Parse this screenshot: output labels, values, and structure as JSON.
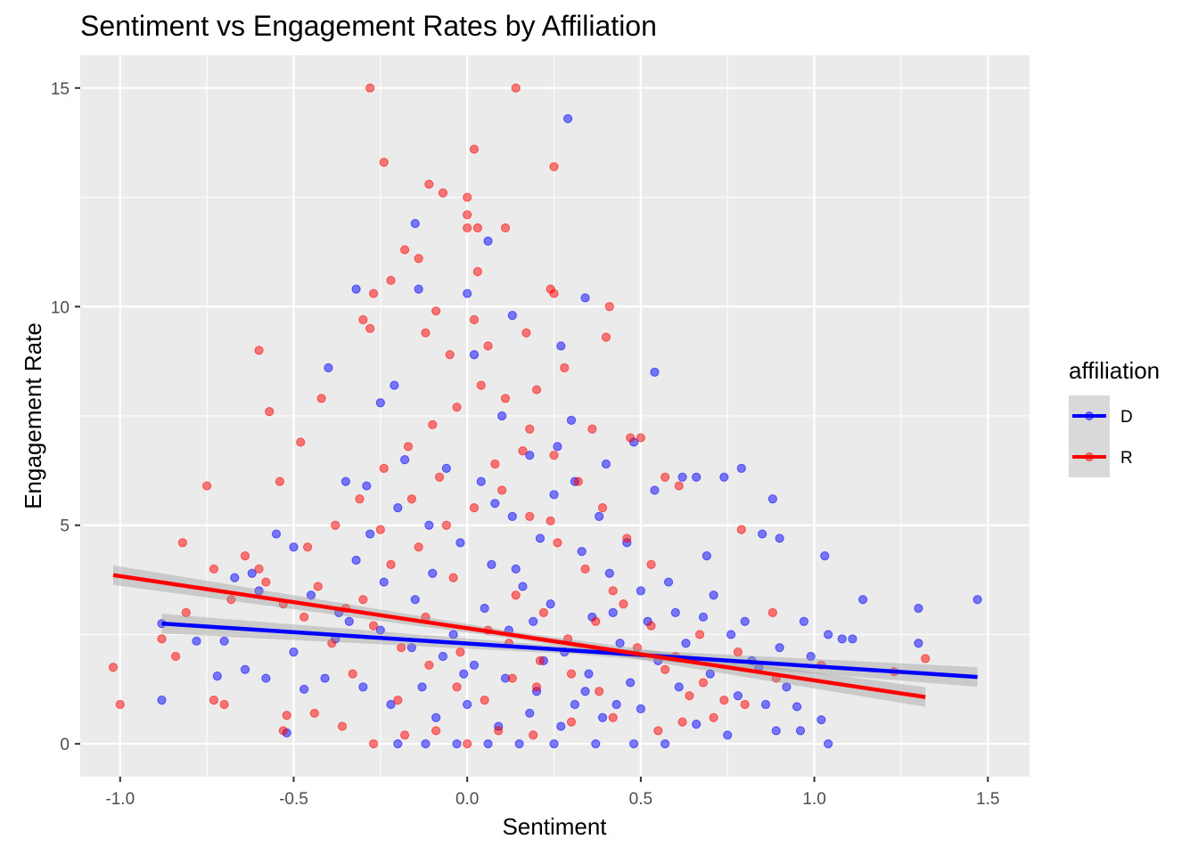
{
  "chart_data": {
    "type": "scatter",
    "title": "Sentiment vs Engagement Rates by Affiliation",
    "xlabel": "Sentiment",
    "ylabel": "Engagement Rate",
    "xlim": [
      -1.115,
      1.62
    ],
    "ylim": [
      -0.75,
      15.75
    ],
    "x_ticks": [
      -1.0,
      -0.5,
      0.0,
      0.5,
      1.0,
      1.5
    ],
    "x_tick_labels": [
      "-1.0",
      "-0.5",
      "0.0",
      "0.5",
      "1.0",
      "1.5"
    ],
    "y_ticks": [
      0,
      5,
      10,
      15
    ],
    "y_tick_labels": [
      "0",
      "5",
      "10",
      "15"
    ],
    "grid": true,
    "legend": {
      "title": "affiliation",
      "position": "right"
    },
    "series": [
      {
        "name": "D",
        "color": "#0000FF",
        "points": [
          [
            0.29,
            14.3
          ],
          [
            0.06,
            11.5
          ],
          [
            -0.15,
            11.9
          ],
          [
            -0.32,
            10.4
          ],
          [
            -0.14,
            10.4
          ],
          [
            0.34,
            10.2
          ],
          [
            0.0,
            10.3
          ],
          [
            0.13,
            9.8
          ],
          [
            0.27,
            9.1
          ],
          [
            -0.4,
            8.6
          ],
          [
            0.54,
            8.5
          ],
          [
            0.02,
            8.9
          ],
          [
            -0.21,
            8.2
          ],
          [
            0.79,
            6.3
          ],
          [
            0.88,
            5.6
          ],
          [
            -0.25,
            7.8
          ],
          [
            0.1,
            7.5
          ],
          [
            0.48,
            6.9
          ],
          [
            0.3,
            7.4
          ],
          [
            0.62,
            6.1
          ],
          [
            0.66,
            6.1
          ],
          [
            0.74,
            6.1
          ],
          [
            -0.35,
            6.0
          ],
          [
            0.54,
            5.8
          ],
          [
            -0.55,
            4.8
          ],
          [
            -0.5,
            4.5
          ],
          [
            -0.62,
            3.9
          ],
          [
            -0.67,
            3.8
          ],
          [
            -0.6,
            3.5
          ],
          [
            0.69,
            4.3
          ],
          [
            0.85,
            4.8
          ],
          [
            0.9,
            4.7
          ],
          [
            1.03,
            4.3
          ],
          [
            1.47,
            3.3
          ],
          [
            1.3,
            3.1
          ],
          [
            1.14,
            3.3
          ],
          [
            0.97,
            2.8
          ],
          [
            1.04,
            2.5
          ],
          [
            1.08,
            2.4
          ],
          [
            1.11,
            2.4
          ],
          [
            1.3,
            2.3
          ],
          [
            -0.88,
            2.75
          ],
          [
            -0.78,
            2.35
          ],
          [
            -0.7,
            2.35
          ],
          [
            -0.72,
            1.55
          ],
          [
            -0.64,
            1.7
          ],
          [
            -0.58,
            1.5
          ],
          [
            -0.5,
            2.1
          ],
          [
            -0.88,
            1.0
          ],
          [
            -0.52,
            0.25
          ],
          [
            -0.47,
            1.25
          ],
          [
            0.82,
            1.9
          ],
          [
            0.84,
            1.75
          ],
          [
            0.92,
            1.3
          ],
          [
            0.95,
            0.85
          ],
          [
            1.02,
            0.55
          ],
          [
            1.04,
            0.0
          ],
          [
            0.96,
            0.3
          ],
          [
            0.89,
            0.3
          ],
          [
            0.75,
            0.2
          ],
          [
            0.66,
            0.45
          ],
          [
            0.57,
            0.0
          ],
          [
            0.48,
            0.0
          ],
          [
            0.37,
            0.0
          ],
          [
            0.25,
            0.0
          ],
          [
            0.15,
            0.0
          ],
          [
            0.06,
            0.0
          ],
          [
            -0.03,
            0.0
          ],
          [
            -0.12,
            0.0
          ],
          [
            -0.2,
            0.0
          ],
          [
            0.43,
            0.9
          ],
          [
            0.31,
            0.9
          ],
          [
            0.2,
            1.2
          ],
          [
            0.11,
            1.5
          ],
          [
            0.02,
            1.8
          ],
          [
            -0.07,
            2.0
          ],
          [
            -0.16,
            2.2
          ],
          [
            -0.25,
            2.6
          ],
          [
            -0.34,
            2.8
          ],
          [
            -0.41,
            1.5
          ],
          [
            0.35,
            1.6
          ],
          [
            0.44,
            2.3
          ],
          [
            0.52,
            2.8
          ],
          [
            0.6,
            3.0
          ],
          [
            0.68,
            2.9
          ],
          [
            0.76,
            2.5
          ],
          [
            0.24,
            3.2
          ],
          [
            0.16,
            3.6
          ],
          [
            0.07,
            4.1
          ],
          [
            -0.02,
            4.6
          ],
          [
            -0.11,
            5.0
          ],
          [
            -0.2,
            5.4
          ],
          [
            -0.28,
            4.8
          ],
          [
            0.33,
            4.4
          ],
          [
            0.41,
            3.9
          ],
          [
            0.5,
            3.5
          ],
          [
            0.58,
            3.7
          ],
          [
            0.13,
            5.2
          ],
          [
            0.21,
            4.7
          ],
          [
            0.04,
            6.0
          ],
          [
            -0.06,
            6.3
          ],
          [
            0.18,
            6.6
          ],
          [
            0.25,
            5.7
          ],
          [
            0.38,
            5.2
          ],
          [
            0.46,
            4.6
          ],
          [
            -0.15,
            3.3
          ],
          [
            -0.24,
            3.7
          ],
          [
            -0.32,
            4.2
          ],
          [
            -0.37,
            3.0
          ],
          [
            -0.3,
            1.3
          ],
          [
            -0.22,
            0.9
          ],
          [
            -0.09,
            0.6
          ],
          [
            0.0,
            0.9
          ],
          [
            0.09,
            0.4
          ],
          [
            0.18,
            0.7
          ],
          [
            0.27,
            0.4
          ],
          [
            0.39,
            0.6
          ],
          [
            0.5,
            0.8
          ],
          [
            0.61,
            1.3
          ],
          [
            0.7,
            1.6
          ],
          [
            0.78,
            1.1
          ],
          [
            0.86,
            0.9
          ],
          [
            0.12,
            2.6
          ],
          [
            0.05,
            3.1
          ],
          [
            -0.04,
            2.5
          ],
          [
            0.28,
            2.1
          ],
          [
            0.36,
            2.9
          ],
          [
            0.22,
            1.9
          ],
          [
            0.14,
            4.0
          ],
          [
            -0.1,
            3.9
          ],
          [
            0.47,
            1.4
          ],
          [
            0.55,
            1.9
          ],
          [
            0.63,
            2.3
          ],
          [
            -0.45,
            3.4
          ],
          [
            -0.38,
            2.4
          ],
          [
            0.08,
            5.5
          ],
          [
            0.31,
            6.0
          ],
          [
            -0.18,
            6.5
          ],
          [
            0.4,
            6.4
          ],
          [
            0.26,
            6.8
          ],
          [
            -0.29,
            5.9
          ],
          [
            0.71,
            3.4
          ],
          [
            0.8,
            2.8
          ],
          [
            0.9,
            2.2
          ],
          [
            0.99,
            2.0
          ],
          [
            0.42,
            3.0
          ],
          [
            0.19,
            2.8
          ],
          [
            -0.01,
            1.6
          ],
          [
            -0.13,
            1.3
          ],
          [
            0.34,
            1.2
          ]
        ],
        "trend": {
          "x": [
            -0.88,
            1.47
          ],
          "y": [
            2.75,
            1.53
          ]
        }
      },
      {
        "name": "R",
        "color": "#FF0000",
        "points": [
          [
            -0.28,
            15.0
          ],
          [
            0.14,
            15.0
          ],
          [
            0.02,
            13.6
          ],
          [
            -0.24,
            13.3
          ],
          [
            0.25,
            13.2
          ],
          [
            -0.11,
            12.8
          ],
          [
            -0.07,
            12.6
          ],
          [
            0.0,
            12.5
          ],
          [
            0.0,
            12.1
          ],
          [
            0.0,
            11.8
          ],
          [
            0.11,
            11.8
          ],
          [
            0.03,
            11.8
          ],
          [
            -0.18,
            11.3
          ],
          [
            -0.14,
            11.1
          ],
          [
            0.24,
            10.4
          ],
          [
            0.25,
            10.3
          ],
          [
            -0.22,
            10.6
          ],
          [
            0.03,
            10.8
          ],
          [
            -0.27,
            10.3
          ],
          [
            -0.09,
            9.9
          ],
          [
            0.41,
            10.0
          ],
          [
            0.02,
            9.7
          ],
          [
            -0.3,
            9.7
          ],
          [
            -0.28,
            9.5
          ],
          [
            0.4,
            9.3
          ],
          [
            0.17,
            9.4
          ],
          [
            -0.6,
            9.0
          ],
          [
            0.06,
            9.1
          ],
          [
            -0.12,
            9.4
          ],
          [
            0.28,
            8.6
          ],
          [
            -0.05,
            8.9
          ],
          [
            -0.57,
            7.6
          ],
          [
            -0.75,
            5.9
          ],
          [
            -0.54,
            6.0
          ],
          [
            -0.48,
            6.9
          ],
          [
            -0.42,
            7.9
          ],
          [
            0.2,
            8.1
          ],
          [
            0.36,
            7.2
          ],
          [
            0.47,
            7.0
          ],
          [
            0.5,
            7.0
          ],
          [
            0.57,
            6.1
          ],
          [
            0.61,
            5.9
          ],
          [
            0.79,
            4.9
          ],
          [
            -0.82,
            4.6
          ],
          [
            -0.88,
            2.4
          ],
          [
            -0.84,
            2.0
          ],
          [
            -0.81,
            3.0
          ],
          [
            -0.73,
            4.0
          ],
          [
            -0.68,
            3.3
          ],
          [
            -0.64,
            4.3
          ],
          [
            -0.6,
            4.0
          ],
          [
            -0.58,
            3.7
          ],
          [
            -0.53,
            3.2
          ],
          [
            -1.02,
            1.75
          ],
          [
            -1.0,
            0.9
          ],
          [
            -0.73,
            1.0
          ],
          [
            -0.7,
            0.9
          ],
          [
            -0.52,
            0.65
          ],
          [
            -0.53,
            0.3
          ],
          [
            -0.44,
            0.7
          ],
          [
            -0.36,
            0.4
          ],
          [
            -0.27,
            0.0
          ],
          [
            -0.18,
            0.2
          ],
          [
            -0.09,
            0.3
          ],
          [
            0.0,
            0.0
          ],
          [
            0.09,
            0.3
          ],
          [
            0.19,
            0.2
          ],
          [
            0.3,
            0.5
          ],
          [
            0.42,
            0.6
          ],
          [
            0.55,
            0.3
          ],
          [
            0.62,
            0.5
          ],
          [
            0.71,
            0.6
          ],
          [
            0.8,
            0.9
          ],
          [
            0.89,
            1.5
          ],
          [
            1.02,
            1.8
          ],
          [
            1.23,
            1.65
          ],
          [
            1.32,
            1.95
          ],
          [
            0.88,
            3.0
          ],
          [
            0.78,
            2.1
          ],
          [
            0.67,
            2.5
          ],
          [
            -0.46,
            4.5
          ],
          [
            -0.38,
            5.0
          ],
          [
            -0.31,
            5.6
          ],
          [
            -0.24,
            6.3
          ],
          [
            -0.17,
            6.8
          ],
          [
            -0.1,
            7.3
          ],
          [
            -0.03,
            7.7
          ],
          [
            0.04,
            8.2
          ],
          [
            0.11,
            7.9
          ],
          [
            0.18,
            7.2
          ],
          [
            0.25,
            6.6
          ],
          [
            0.32,
            6.0
          ],
          [
            0.39,
            5.4
          ],
          [
            0.46,
            4.7
          ],
          [
            0.53,
            4.1
          ],
          [
            -0.43,
            3.6
          ],
          [
            -0.35,
            3.1
          ],
          [
            -0.27,
            2.7
          ],
          [
            -0.19,
            2.2
          ],
          [
            -0.11,
            1.8
          ],
          [
            -0.03,
            1.3
          ],
          [
            0.05,
            1.0
          ],
          [
            0.13,
            1.5
          ],
          [
            0.21,
            1.9
          ],
          [
            0.29,
            2.4
          ],
          [
            0.37,
            2.8
          ],
          [
            0.45,
            3.2
          ],
          [
            0.53,
            2.7
          ],
          [
            0.6,
            2.0
          ],
          [
            0.68,
            1.4
          ],
          [
            0.74,
            1.0
          ],
          [
            -0.22,
            4.1
          ],
          [
            -0.14,
            4.5
          ],
          [
            -0.06,
            5.0
          ],
          [
            0.02,
            5.4
          ],
          [
            0.1,
            5.8
          ],
          [
            0.18,
            5.2
          ],
          [
            0.26,
            4.6
          ],
          [
            0.34,
            4.0
          ],
          [
            0.42,
            3.5
          ],
          [
            -0.3,
            3.3
          ],
          [
            -0.12,
            2.9
          ],
          [
            0.06,
            2.6
          ],
          [
            0.14,
            3.4
          ],
          [
            -0.04,
            3.8
          ],
          [
            0.22,
            3.0
          ],
          [
            0.3,
            1.6
          ],
          [
            0.38,
            1.2
          ],
          [
            -0.2,
            1.0
          ],
          [
            -0.39,
            2.3
          ],
          [
            -0.47,
            2.9
          ],
          [
            0.08,
            6.4
          ],
          [
            -0.08,
            6.1
          ],
          [
            0.16,
            6.7
          ],
          [
            -0.16,
            5.6
          ],
          [
            0.24,
            5.1
          ],
          [
            -0.25,
            4.9
          ],
          [
            0.49,
            2.2
          ],
          [
            0.57,
            1.7
          ],
          [
            0.64,
            1.1
          ],
          [
            -0.02,
            2.1
          ],
          [
            0.12,
            2.3
          ],
          [
            0.2,
            1.3
          ],
          [
            -0.33,
            1.6
          ]
        ],
        "trend": {
          "x": [
            -1.02,
            1.32
          ],
          "y": [
            3.86,
            1.07
          ]
        }
      }
    ]
  }
}
